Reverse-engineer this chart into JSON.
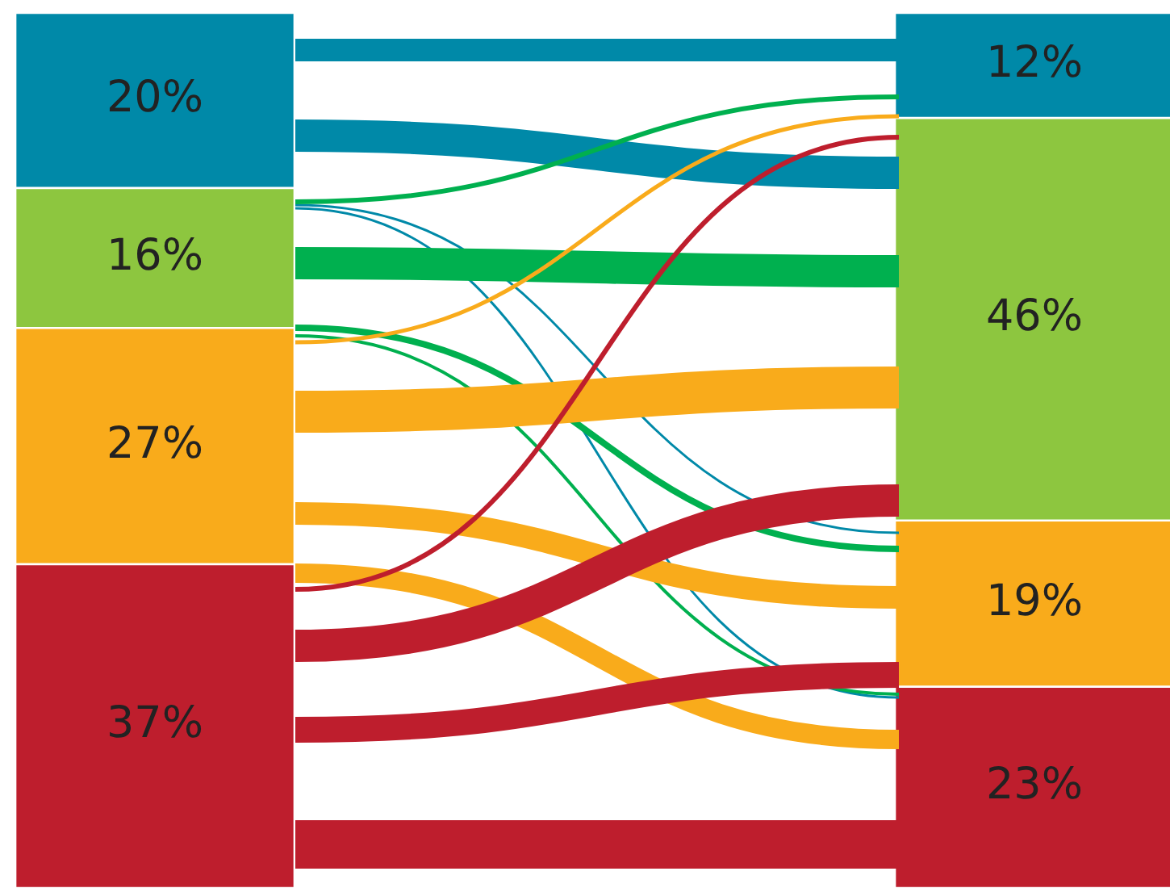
{
  "chart_data": {
    "type": "bar",
    "stacked": true,
    "ylim": [
      0,
      100
    ],
    "tick_labels": false,
    "categories": [
      null,
      null
    ],
    "series": [
      {
        "color": "#be1e2d",
        "values": [
          37,
          23
        ],
        "value_labels": [
          "37%",
          "23%"
        ]
      },
      {
        "color": "#f9ab1b",
        "values": [
          27,
          19
        ],
        "value_labels": [
          "27%",
          "19%"
        ]
      },
      {
        "color": "#8dc63f",
        "values": [
          16,
          46
        ],
        "value_labels": [
          "16%",
          "46%"
        ]
      },
      {
        "color": "#0089a8",
        "values": [
          20,
          12
        ],
        "value_labels": [
          "20%",
          "12%"
        ]
      }
    ]
  }
}
